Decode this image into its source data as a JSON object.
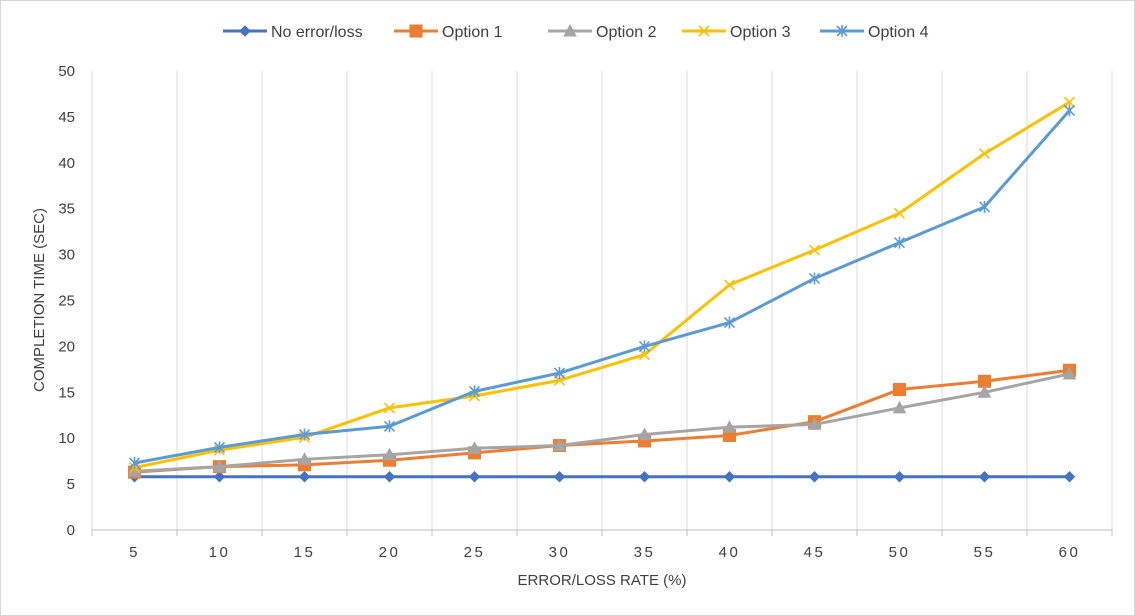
{
  "chart_data": {
    "type": "line",
    "title": "",
    "xlabel": "ERROR/LOSS RATE (%)",
    "ylabel": "COMPLETION TIME (SEC)",
    "categories": [
      "5",
      "10",
      "15",
      "20",
      "25",
      "30",
      "35",
      "40",
      "45",
      "50",
      "55",
      "60"
    ],
    "ylim": [
      0,
      50
    ],
    "yticks": [
      "0",
      "5",
      "10",
      "15",
      "20",
      "25",
      "30",
      "35",
      "40",
      "45",
      "50"
    ],
    "grid": "vertical",
    "legend_position": "top",
    "series": [
      {
        "name": "No error/loss",
        "color": "#4472C4",
        "marker": "diamond",
        "values": [
          5.8,
          5.8,
          5.8,
          5.8,
          5.8,
          5.8,
          5.8,
          5.8,
          5.8,
          5.8,
          5.8,
          5.8
        ]
      },
      {
        "name": "Option 1",
        "color": "#ED7D31",
        "marker": "square",
        "values": [
          6.3,
          6.9,
          7.1,
          7.6,
          8.4,
          9.2,
          9.7,
          10.3,
          11.8,
          15.3,
          16.2,
          17.4
        ]
      },
      {
        "name": "Option 2",
        "color": "#A5A5A5",
        "marker": "triangle",
        "values": [
          6.4,
          6.9,
          7.7,
          8.2,
          8.9,
          9.2,
          10.4,
          11.2,
          11.5,
          13.3,
          15.0,
          17.0
        ]
      },
      {
        "name": "Option 3",
        "color": "#FFC000",
        "marker": "x",
        "values": [
          6.8,
          8.7,
          10.1,
          13.3,
          14.6,
          16.3,
          19.1,
          26.7,
          30.5,
          34.5,
          41.0,
          46.6
        ]
      },
      {
        "name": "Option 4",
        "color": "#5B9BD5",
        "marker": "star",
        "values": [
          7.3,
          9.0,
          10.4,
          11.3,
          15.1,
          17.1,
          20.0,
          22.6,
          27.4,
          31.3,
          35.2,
          45.7
        ]
      }
    ]
  }
}
